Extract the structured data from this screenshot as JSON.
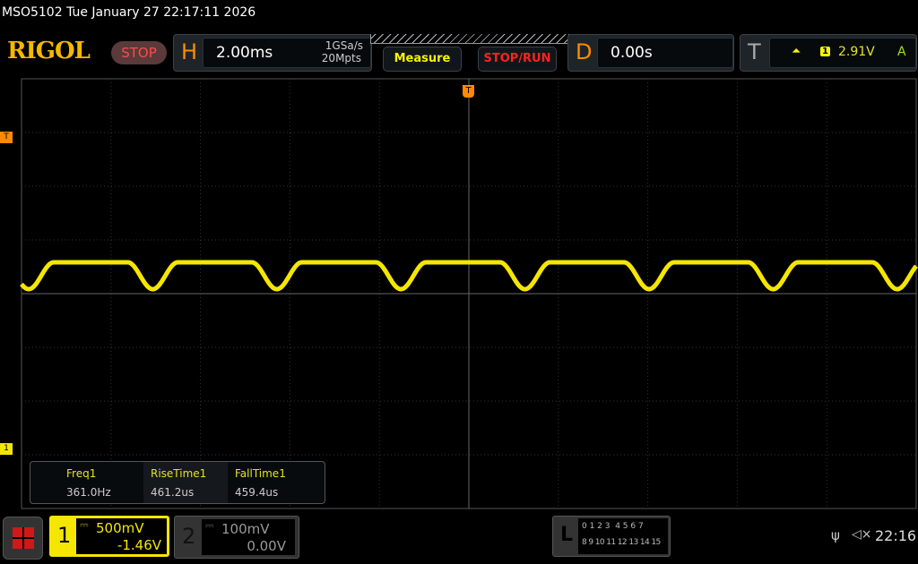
{
  "status_bar": {
    "title": "MSO5102  Tue January 27 22:17:11 2026"
  },
  "brand": {
    "logo": "RIGOL",
    "run_state": "STOP"
  },
  "horizontal": {
    "letter": "H",
    "timebase": "2.00ms",
    "sample_rate": "1GSa/s",
    "memory_depth": "20Mpts"
  },
  "buttons": {
    "measure": "Measure",
    "stop_run": "STOP/RUN"
  },
  "delay": {
    "letter": "D",
    "value": "0.00s"
  },
  "trigger": {
    "letter": "T",
    "source": "1",
    "level": "2.91V",
    "mode": "A",
    "edge_icon": "rising-edge-icon"
  },
  "markers": {
    "trigger_level": "T",
    "channel1": "1",
    "trigger_position": "T"
  },
  "measurements": [
    {
      "label": "Freq1",
      "value": "361.0Hz"
    },
    {
      "label": "RiseTime1",
      "value": "461.2us"
    },
    {
      "label": "FallTime1",
      "value": "459.4us"
    }
  ],
  "channels": [
    {
      "number": "1",
      "scale": "500mV",
      "offset": "-1.46V",
      "color": "#f5e600"
    },
    {
      "number": "2",
      "scale": "100mV",
      "offset": "0.00V",
      "color": "#888888"
    }
  ],
  "logic": {
    "letter": "L",
    "row1": "0 1 2 3  4 5 6 7",
    "row2": "8 9 10 11 12 13 14 15"
  },
  "tray": {
    "time": "22:16",
    "usb_icon": "usb-icon",
    "sound_icon": "speaker-muted-icon"
  },
  "colors": {
    "trace": "#f5e600",
    "accent": "#ff8a00",
    "stop": "#ff3030"
  }
}
